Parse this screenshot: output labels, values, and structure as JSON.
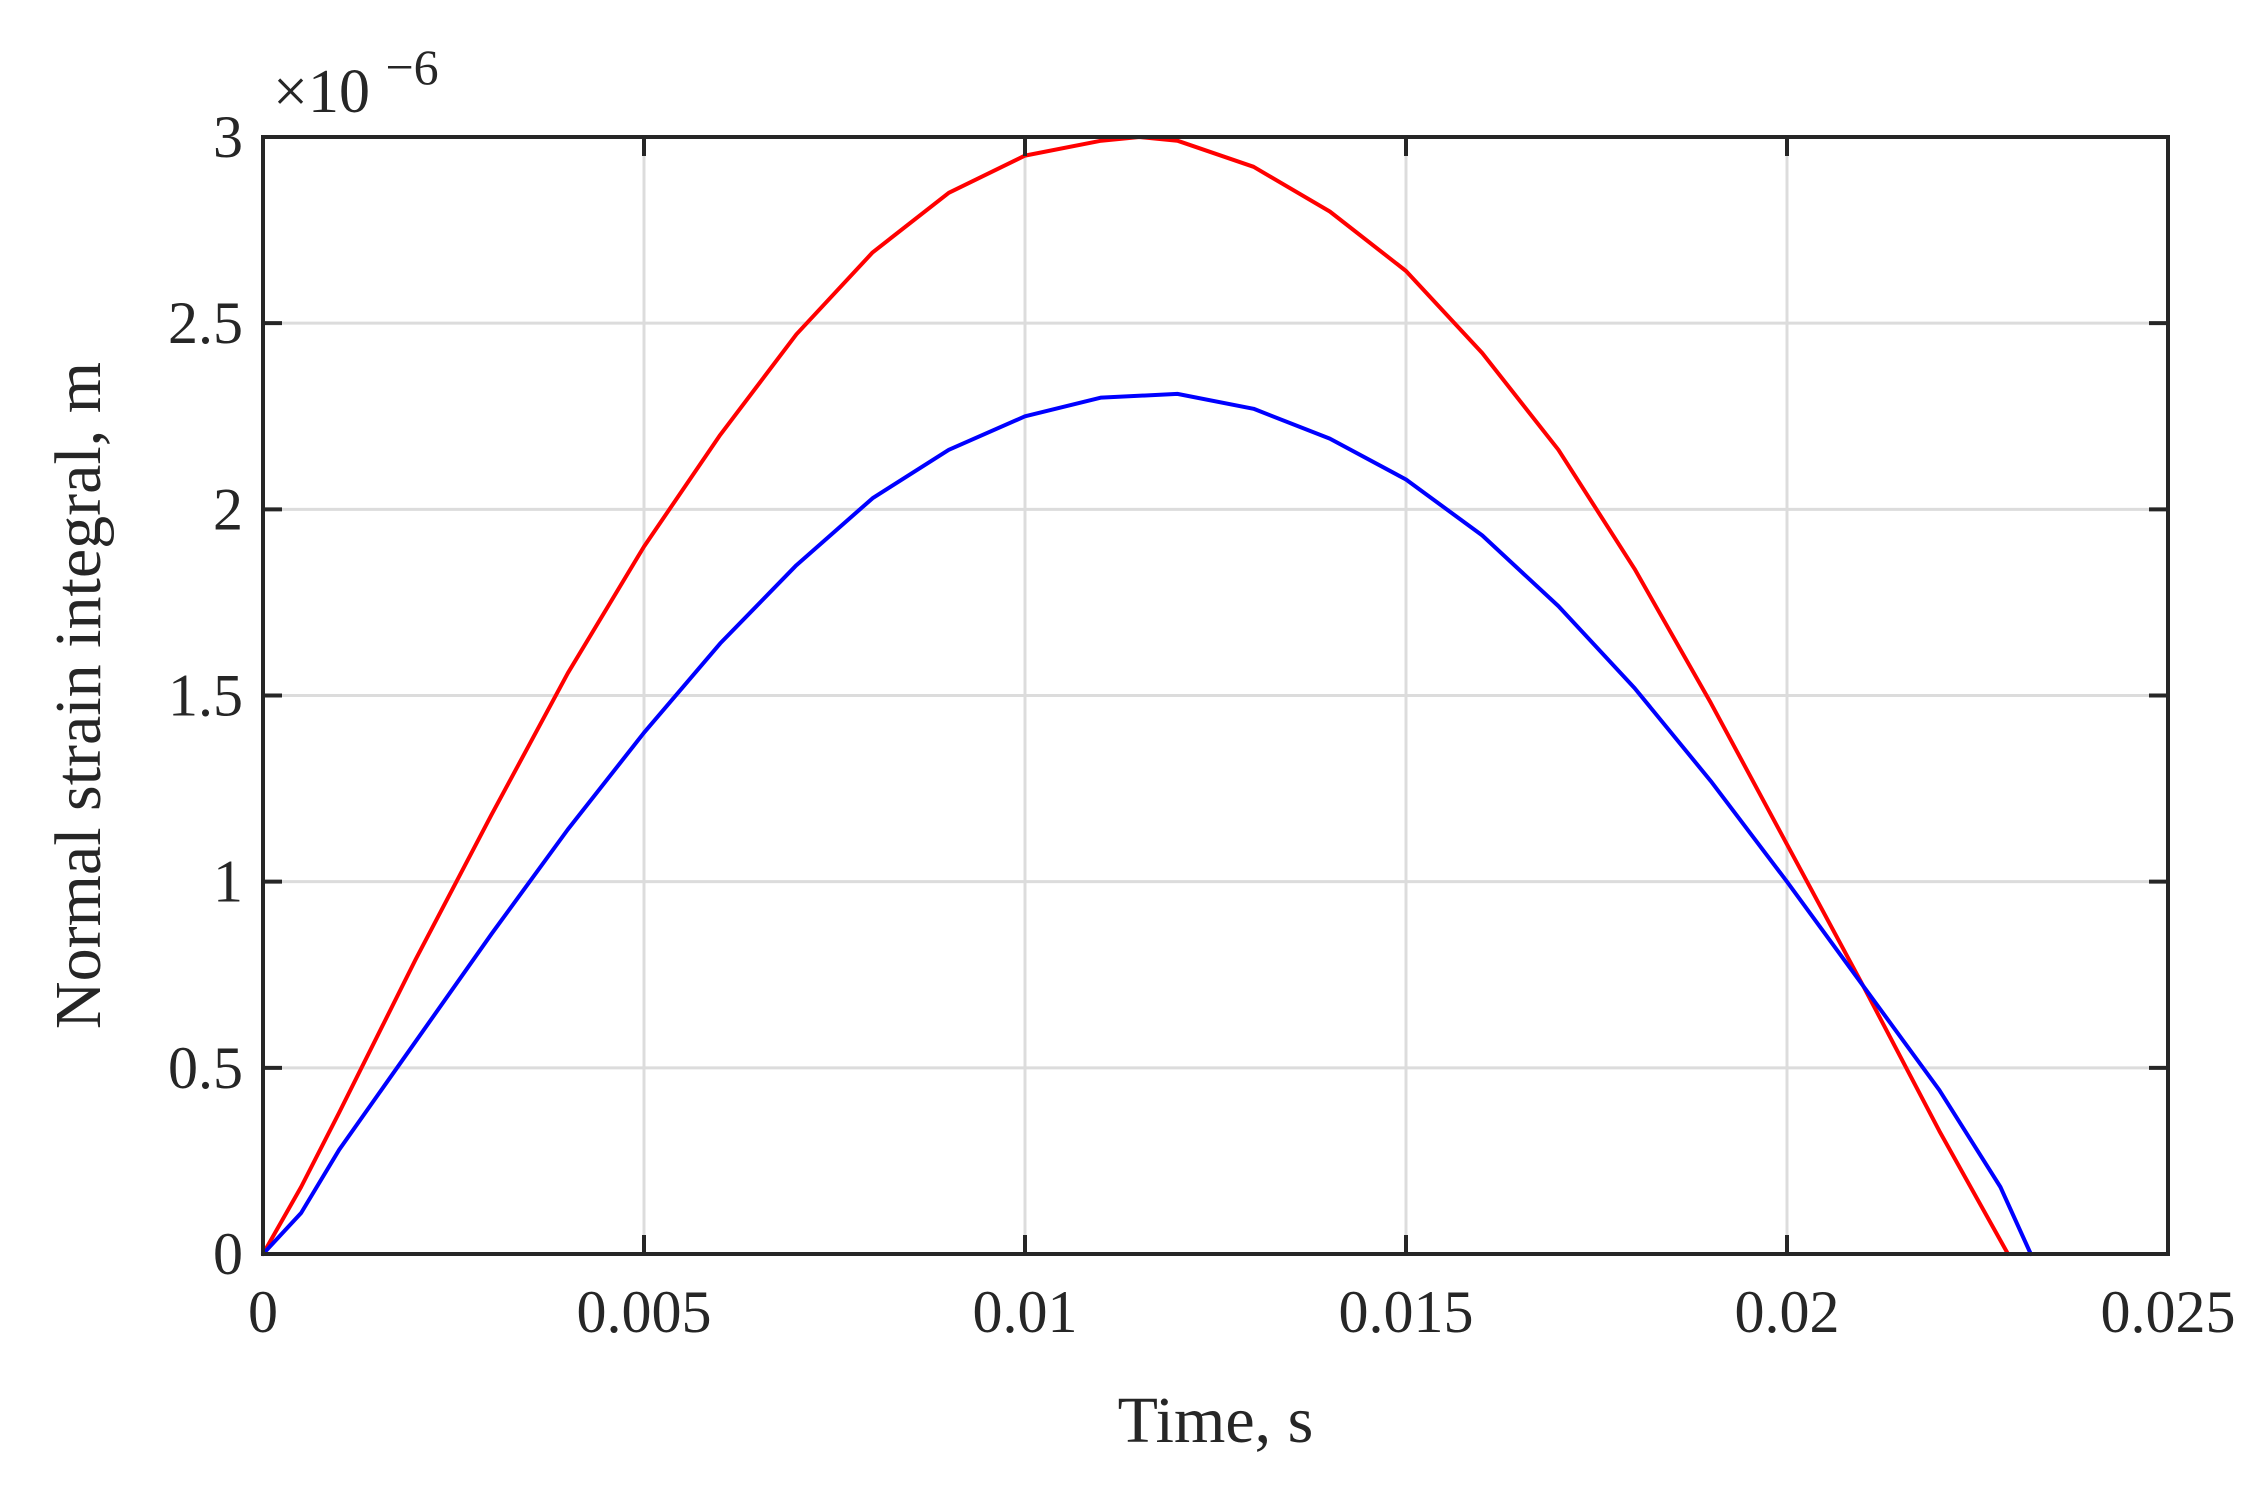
{
  "chart_data": {
    "type": "line",
    "title": "",
    "xlabel": "Time, s",
    "ylabel": "Normal strain integral, m",
    "y_exponent_label": "×10",
    "y_exponent_power": "−6",
    "xlim": [
      0,
      0.025
    ],
    "ylim": [
      0,
      3
    ],
    "x_ticks": [
      0,
      0.005,
      0.01,
      0.015,
      0.02,
      0.025
    ],
    "x_tick_labels": [
      "0",
      "0.005",
      "0.01",
      "0.015",
      "0.02",
      "0.025"
    ],
    "y_ticks": [
      0,
      0.5,
      1,
      1.5,
      2,
      2.5,
      3
    ],
    "y_tick_labels": [
      "0",
      "0.5",
      "1",
      "1.5",
      "2",
      "2.5",
      "3"
    ],
    "grid": true,
    "legend": "none",
    "series": [
      {
        "color": "#ff0000",
        "x": [
          0,
          0.0005,
          0.001,
          0.002,
          0.003,
          0.004,
          0.005,
          0.006,
          0.007,
          0.008,
          0.009,
          0.01,
          0.011,
          0.0115,
          0.012,
          0.013,
          0.014,
          0.015,
          0.016,
          0.017,
          0.018,
          0.019,
          0.02,
          0.021,
          0.022,
          0.0229
        ],
        "y": [
          0,
          0.18,
          0.38,
          0.79,
          1.18,
          1.56,
          1.9,
          2.2,
          2.47,
          2.69,
          2.85,
          2.95,
          2.99,
          3.0,
          2.99,
          2.92,
          2.8,
          2.64,
          2.42,
          2.16,
          1.84,
          1.48,
          1.1,
          0.72,
          0.33,
          0.0
        ]
      },
      {
        "color": "#0000ff",
        "x": [
          0,
          0.0005,
          0.001,
          0.002,
          0.003,
          0.004,
          0.005,
          0.006,
          0.007,
          0.008,
          0.009,
          0.01,
          0.011,
          0.012,
          0.013,
          0.014,
          0.015,
          0.016,
          0.017,
          0.018,
          0.019,
          0.02,
          0.021,
          0.022,
          0.0228,
          0.0232
        ],
        "y": [
          0,
          0.11,
          0.28,
          0.57,
          0.86,
          1.14,
          1.4,
          1.64,
          1.85,
          2.03,
          2.16,
          2.25,
          2.3,
          2.31,
          2.27,
          2.19,
          2.08,
          1.93,
          1.74,
          1.52,
          1.27,
          1.0,
          0.72,
          0.44,
          0.18,
          0.0
        ]
      }
    ]
  }
}
